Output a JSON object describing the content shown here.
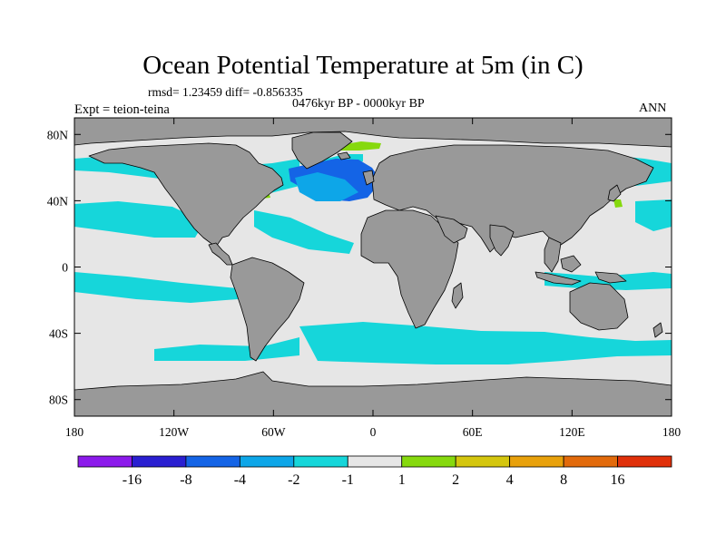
{
  "title": "Ocean Potential Temperature at 5m (in C)",
  "stats_line": "rmsd= 1.23459 diff= -0.856335",
  "period": "0476kyr BP - 0000kyr BP",
  "experiment": "Expt = teion-teina",
  "season": "ANN",
  "map": {
    "projection": "cylindrical equidistant",
    "lon_range": [
      -180,
      180
    ],
    "lat_range": [
      -90,
      90
    ],
    "land_color": "#999999",
    "x_ticks": [
      {
        "lon": -180,
        "label": "180"
      },
      {
        "lon": -120,
        "label": "120W"
      },
      {
        "lon": -60,
        "label": "60W"
      },
      {
        "lon": 0,
        "label": "0"
      },
      {
        "lon": 60,
        "label": "60E"
      },
      {
        "lon": 120,
        "label": "120E"
      },
      {
        "lon": 180,
        "label": "180"
      }
    ],
    "y_ticks": [
      {
        "lat": 80,
        "label": "80N"
      },
      {
        "lat": 40,
        "label": "40N"
      },
      {
        "lat": 0,
        "label": "0"
      },
      {
        "lat": -40,
        "label": "40S"
      },
      {
        "lat": -80,
        "label": "80S"
      }
    ]
  },
  "colorbar": {
    "colors": [
      "#8c1aeb",
      "#2a1fd1",
      "#1464e6",
      "#0da6e8",
      "#16d6da",
      "#e6e6e6",
      "#86d90e",
      "#d4c60e",
      "#e8a10b",
      "#e26a0b",
      "#e0300a"
    ],
    "labels": [
      "-16",
      "-8",
      "-4",
      "-2",
      "-1",
      "1",
      "2",
      "4",
      "8",
      "16"
    ]
  }
}
